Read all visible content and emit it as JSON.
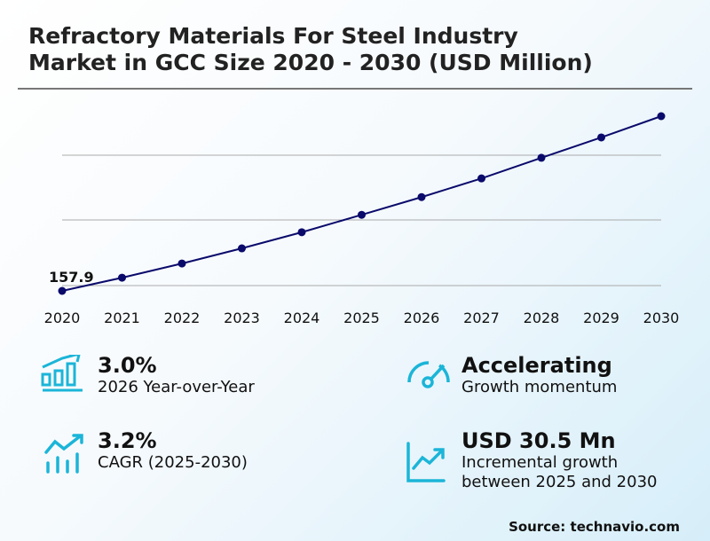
{
  "title": "Refractory Materials For Steel Industry Market in GCC Size 2020 - 2030 (USD Million)",
  "title_line1": "Refractory Materials For Steel Industry",
  "title_line2": "Market in GCC Size 2020 - 2030 (USD Million)",
  "chart_data": {
    "type": "line",
    "categories": [
      "2020",
      "2021",
      "2022",
      "2023",
      "2024",
      "2025",
      "2026",
      "2027",
      "2028",
      "2029",
      "2030"
    ],
    "values": [
      157.9,
      162.0,
      166.4,
      171.1,
      176.1,
      181.5,
      187.0,
      192.8,
      199.2,
      205.5,
      212.1
    ],
    "data_labels": {
      "0": "157.9"
    },
    "grid": true,
    "line_color": "#0a0a6b"
  },
  "kpis": [
    {
      "value": "3.0%",
      "label": "2026 Year-over-Year",
      "icon": "bar-chart-growth-icon"
    },
    {
      "value": "Accelerating",
      "label": "Growth momentum",
      "icon": "speedometer-icon"
    },
    {
      "value": "3.2%",
      "label": "CAGR (2025-2030)",
      "icon": "trend-up-bars-icon"
    },
    {
      "value": "USD 30.5 Mn",
      "label": "Incremental growth",
      "label2": "between 2025 and 2030",
      "icon": "line-chart-up-icon"
    }
  ],
  "accent": "#1bb5d8",
  "source": "Source: technavio.com"
}
